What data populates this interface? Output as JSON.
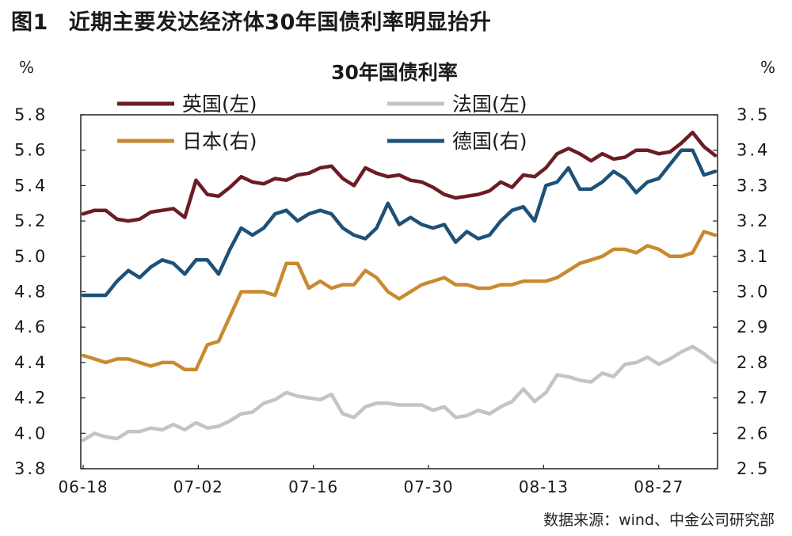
{
  "figure": {
    "label": "图1",
    "title": "近期主要发达经济体30年国债利率明显抬升",
    "source": "数据来源：wind、中金公司研究部"
  },
  "chart_data": {
    "type": "line",
    "title": "30年国债利率",
    "left_axis": {
      "unit": "%",
      "ylim": [
        3.8,
        5.8
      ],
      "ticks": [
        "3.8",
        "4.0",
        "4.2",
        "4.4",
        "4.6",
        "4.8",
        "5.0",
        "5.2",
        "5.4",
        "5.6",
        "5.8"
      ]
    },
    "right_axis": {
      "unit": "%",
      "ylim": [
        2.5,
        3.5
      ],
      "ticks": [
        "2.5",
        "2.6",
        "2.7",
        "2.8",
        "2.9",
        "3.0",
        "3.1",
        "3.2",
        "3.3",
        "3.4",
        "3.5"
      ]
    },
    "x_tick_labels": [
      "06-18",
      "07-02",
      "07-16",
      "07-30",
      "08-13",
      "08-27"
    ],
    "legend_position": "top",
    "colors": {
      "uk": "#6b1c24",
      "france": "#c4c4c4",
      "japan": "#c98a2f",
      "germany": "#1e5178"
    },
    "series": [
      {
        "key": "uk",
        "name": "英国(左)",
        "axis": "left",
        "values": [
          5.24,
          5.26,
          5.26,
          5.21,
          5.2,
          5.21,
          5.25,
          5.26,
          5.27,
          5.22,
          5.43,
          5.35,
          5.34,
          5.39,
          5.45,
          5.42,
          5.41,
          5.44,
          5.43,
          5.46,
          5.47,
          5.5,
          5.51,
          5.44,
          5.4,
          5.5,
          5.47,
          5.45,
          5.46,
          5.43,
          5.42,
          5.39,
          5.35,
          5.33,
          5.34,
          5.35,
          5.37,
          5.42,
          5.39,
          5.46,
          5.45,
          5.5,
          5.58,
          5.61,
          5.58,
          5.54,
          5.58,
          5.55,
          5.56,
          5.6,
          5.6,
          5.58,
          5.59,
          5.64,
          5.7,
          5.62,
          5.57
        ]
      },
      {
        "key": "france",
        "name": "法国(左)",
        "axis": "left",
        "values": [
          3.96,
          4.0,
          3.98,
          3.97,
          4.01,
          4.01,
          4.03,
          4.02,
          4.05,
          4.02,
          4.06,
          4.03,
          4.04,
          4.07,
          4.11,
          4.12,
          4.17,
          4.19,
          4.23,
          4.21,
          4.2,
          4.19,
          4.22,
          4.11,
          4.09,
          4.15,
          4.17,
          4.17,
          4.16,
          4.16,
          4.16,
          4.13,
          4.15,
          4.09,
          4.1,
          4.13,
          4.11,
          4.15,
          4.18,
          4.25,
          4.18,
          4.23,
          4.33,
          4.32,
          4.3,
          4.29,
          4.34,
          4.32,
          4.39,
          4.4,
          4.43,
          4.39,
          4.42,
          4.46,
          4.49,
          4.45,
          4.4
        ]
      },
      {
        "key": "japan",
        "name": "日本(右)",
        "axis": "right",
        "values": [
          2.82,
          2.81,
          2.8,
          2.81,
          2.81,
          2.8,
          2.79,
          2.8,
          2.8,
          2.78,
          2.78,
          2.85,
          2.86,
          2.93,
          3.0,
          3.0,
          3.0,
          2.99,
          3.08,
          3.08,
          3.01,
          3.03,
          3.01,
          3.02,
          3.02,
          3.06,
          3.04,
          3.0,
          2.98,
          3.0,
          3.02,
          3.03,
          3.04,
          3.02,
          3.02,
          3.01,
          3.01,
          3.02,
          3.02,
          3.03,
          3.03,
          3.03,
          3.04,
          3.06,
          3.08,
          3.09,
          3.1,
          3.12,
          3.12,
          3.11,
          3.13,
          3.12,
          3.1,
          3.1,
          3.11,
          3.17,
          3.16
        ]
      },
      {
        "key": "germany",
        "name": "德国(右)",
        "axis": "right",
        "values": [
          2.99,
          2.99,
          2.99,
          3.03,
          3.06,
          3.04,
          3.07,
          3.09,
          3.08,
          3.05,
          3.09,
          3.09,
          3.05,
          3.12,
          3.18,
          3.16,
          3.18,
          3.22,
          3.23,
          3.2,
          3.22,
          3.23,
          3.22,
          3.18,
          3.16,
          3.15,
          3.18,
          3.25,
          3.19,
          3.21,
          3.19,
          3.18,
          3.19,
          3.14,
          3.17,
          3.15,
          3.16,
          3.2,
          3.23,
          3.24,
          3.2,
          3.3,
          3.31,
          3.35,
          3.29,
          3.29,
          3.31,
          3.34,
          3.32,
          3.28,
          3.31,
          3.32,
          3.36,
          3.4,
          3.4,
          3.33,
          3.34
        ]
      }
    ]
  }
}
